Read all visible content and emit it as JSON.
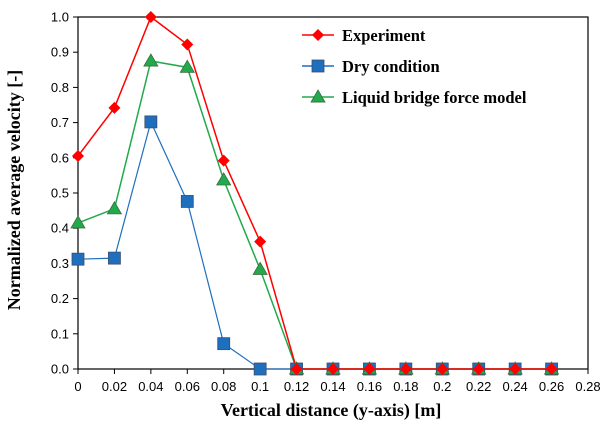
{
  "chart_data": {
    "type": "line",
    "title": "",
    "xlabel": "Vertical distance (y-axis) [m]",
    "ylabel": "Normalized  average velocity [-]",
    "xlim": [
      0,
      0.28
    ],
    "ylim": [
      0,
      1.0
    ],
    "x_ticks": [
      "0",
      "0.02",
      "0.04",
      "0.06",
      "0.08",
      "0.1",
      "0.12",
      "0.14",
      "0.16",
      "0.18",
      "0.2",
      "0.22",
      "0.24",
      "0.26",
      "0.28"
    ],
    "y_ticks": [
      "0.0",
      "0.1",
      "0.2",
      "0.3",
      "0.4",
      "0.5",
      "0.6",
      "0.7",
      "0.8",
      "0.9",
      "1.0"
    ],
    "x": [
      0,
      0.02,
      0.04,
      0.06,
      0.08,
      0.1,
      0.12,
      0.14,
      0.16,
      0.18,
      0.2,
      0.22,
      0.24,
      0.26
    ],
    "grid": false,
    "legend_position": "top-right",
    "series": [
      {
        "name": "Experiment",
        "color": "#ff0000",
        "marker": "diamond",
        "values": [
          0.605,
          0.742,
          1.0,
          0.922,
          0.592,
          0.362,
          0.0,
          0.0,
          0.0,
          0.0,
          0.0,
          0.0,
          0.0,
          0.0
        ]
      },
      {
        "name": "Dry condition",
        "color": "#1f6fbf",
        "marker": "square",
        "values": [
          0.312,
          0.315,
          0.702,
          0.476,
          0.072,
          0.0,
          0.0,
          0.0,
          0.0,
          0.0,
          0.0,
          0.0,
          0.0,
          0.0
        ]
      },
      {
        "name": "Liquid bridge force model",
        "color": "#22aa4a",
        "marker": "triangle",
        "values": [
          0.415,
          0.455,
          0.875,
          0.857,
          0.537,
          0.283,
          0.0,
          0.0,
          0.0,
          0.0,
          0.0,
          0.0,
          0.0,
          0.0
        ]
      }
    ]
  }
}
